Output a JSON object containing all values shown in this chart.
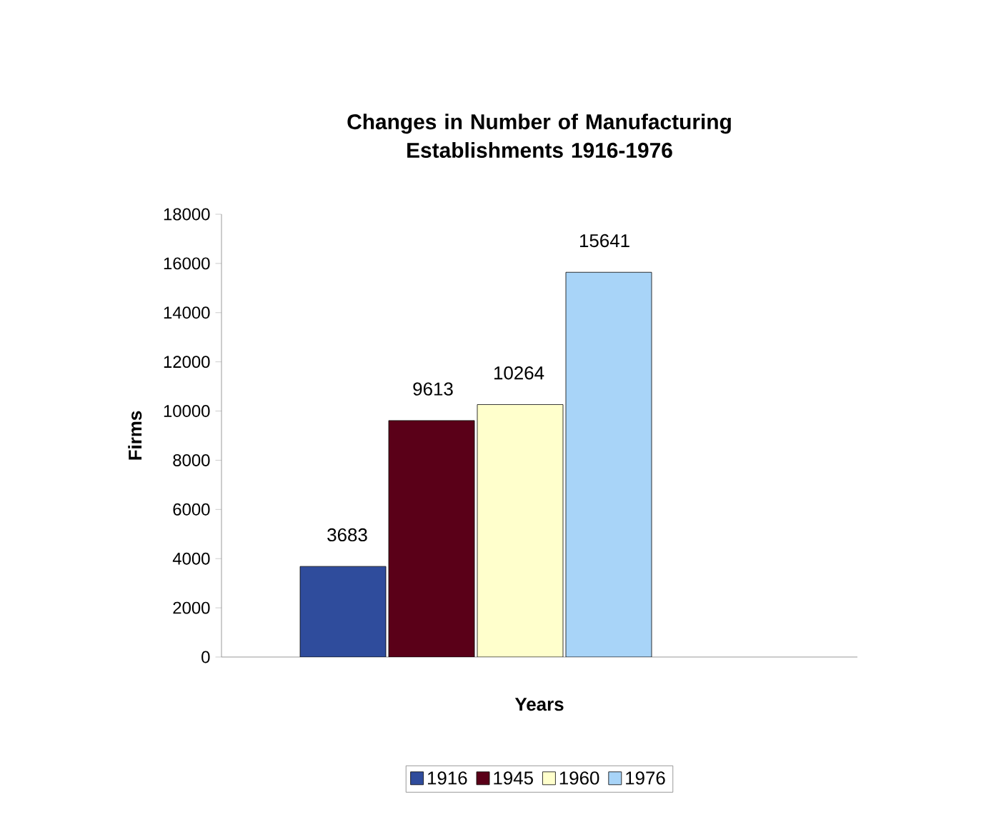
{
  "chart_data": {
    "type": "bar",
    "title": "Changes in Number of Manufacturing Establishments 1916-1976",
    "xlabel": "Years",
    "ylabel": "Firms",
    "categories": [
      null
    ],
    "series": [
      {
        "name": "1916",
        "color": "#2f4c9c",
        "values": [
          3683
        ]
      },
      {
        "name": "1945",
        "color": "#5a0018",
        "values": [
          9613
        ]
      },
      {
        "name": "1960",
        "color": "#ffffcc",
        "values": [
          10264
        ]
      },
      {
        "name": "1976",
        "color": "#a8d4f8",
        "values": [
          15641
        ]
      }
    ],
    "ylim": [
      0,
      18000
    ],
    "yticks": [
      0,
      2000,
      4000,
      6000,
      8000,
      10000,
      12000,
      14000,
      16000,
      18000
    ],
    "data_labels": true,
    "legend": "bottom",
    "grid": false
  }
}
